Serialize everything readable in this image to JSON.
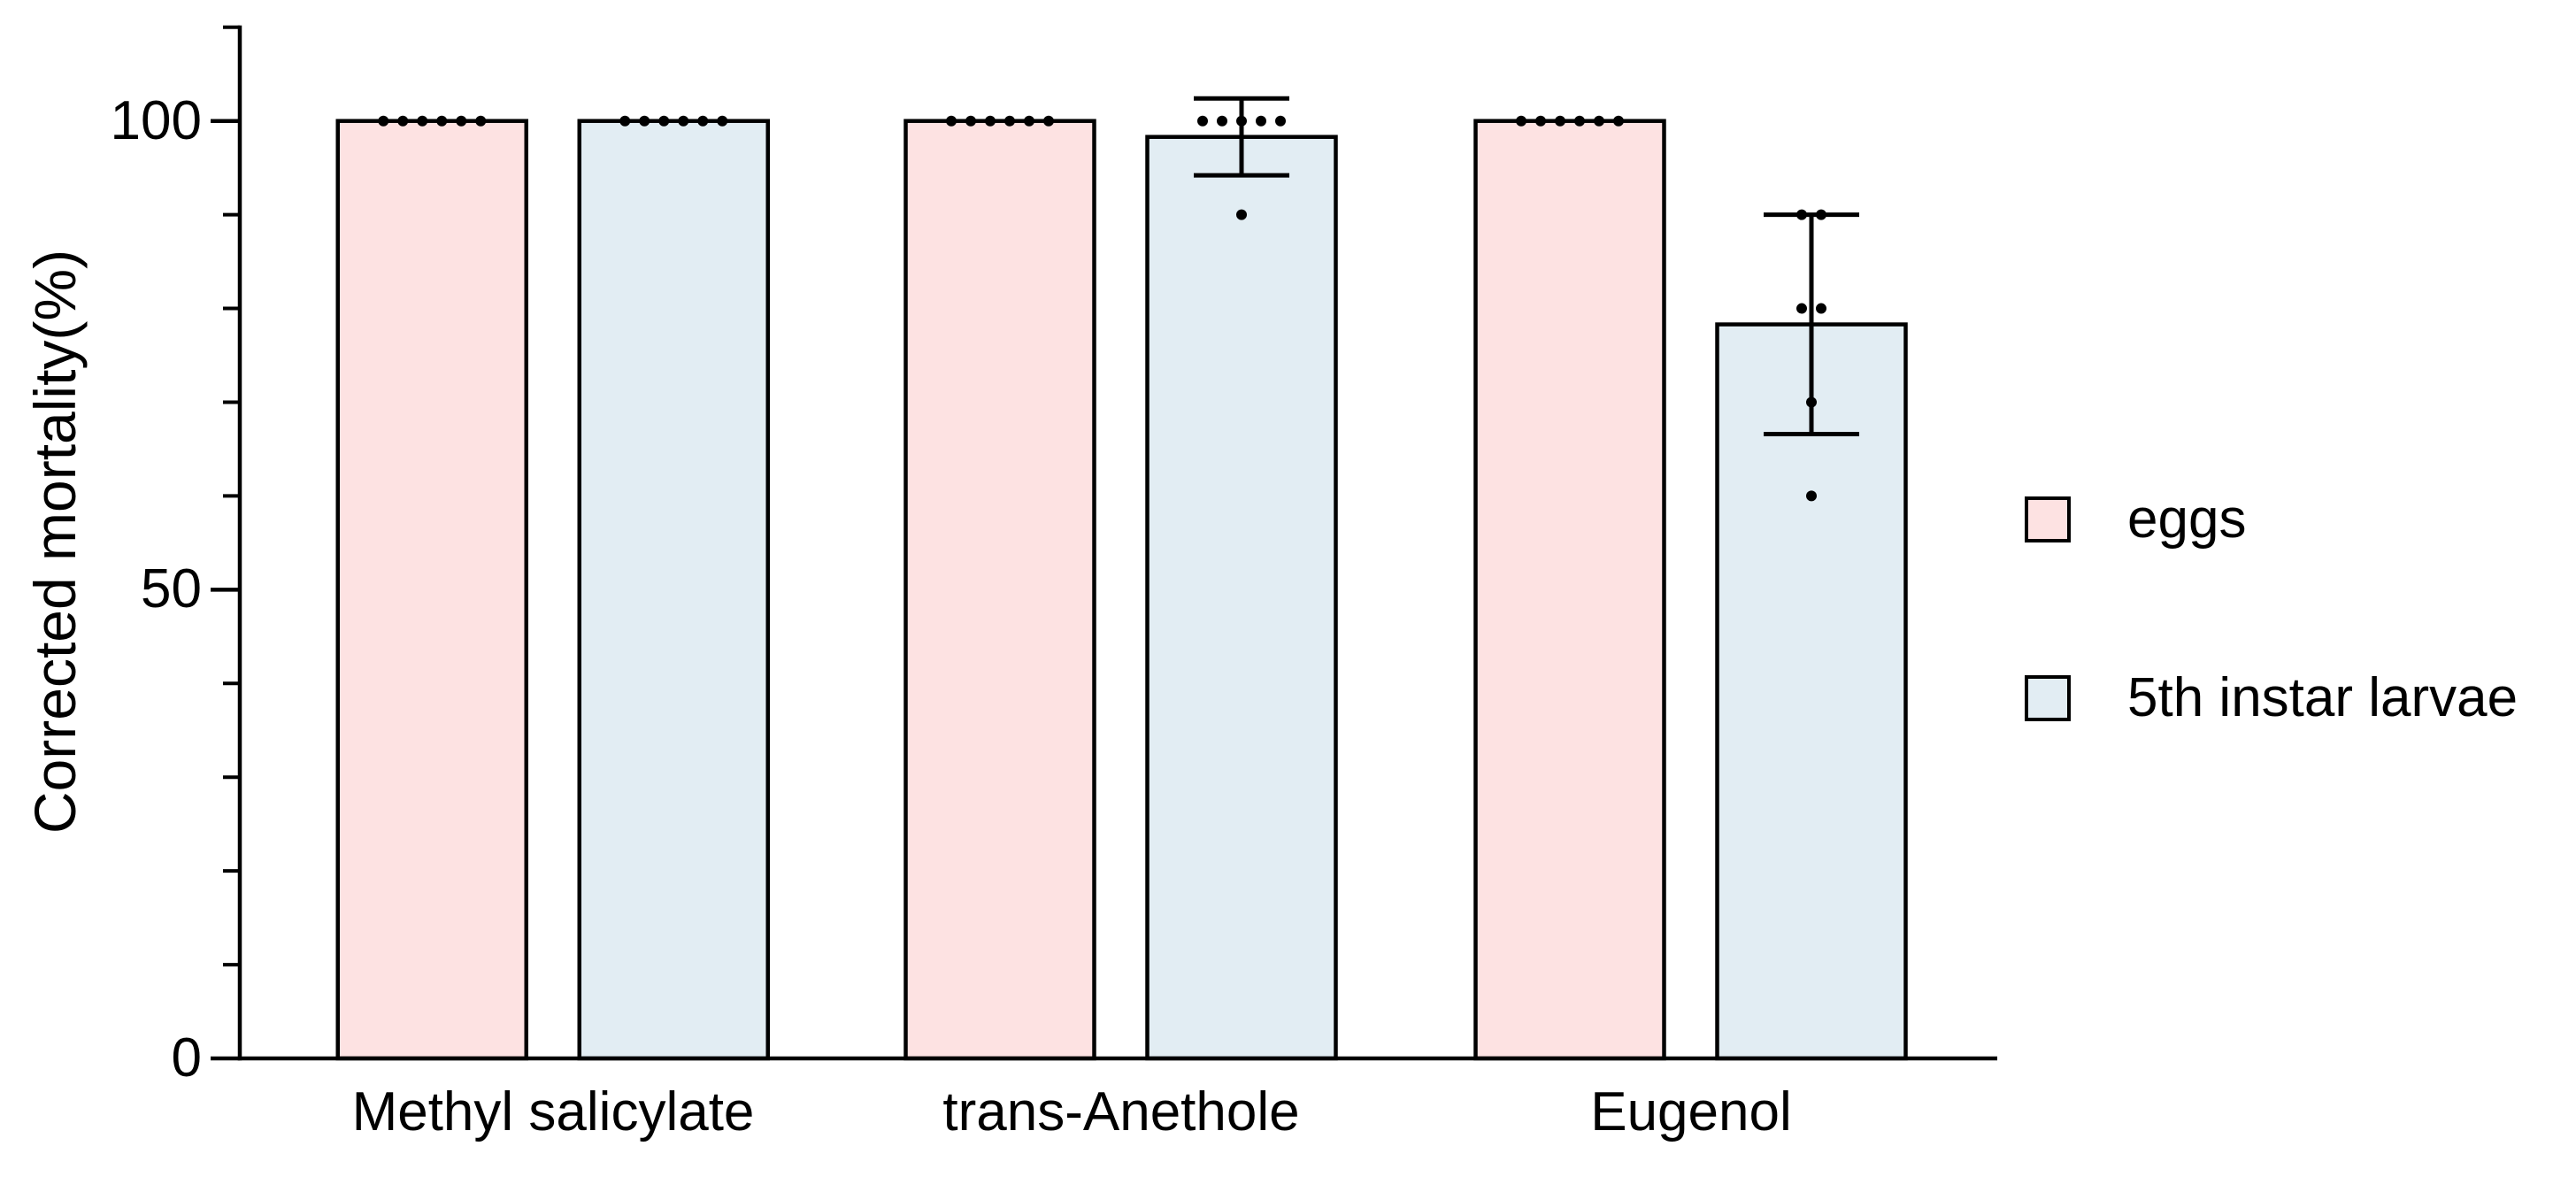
{
  "chart_data": {
    "type": "bar",
    "title": "",
    "ylabel": "Corrected mortality(%)",
    "xlabel": "",
    "categories": [
      "Methyl salicylate",
      "trans-Anethole",
      "Eugenol"
    ],
    "series": [
      {
        "name": "eggs",
        "color": "#FDE2E2",
        "values": [
          100,
          100,
          100
        ],
        "sd": [
          0,
          0,
          0
        ],
        "points": [
          [
            100,
            100,
            100,
            100,
            100,
            100
          ],
          [
            100,
            100,
            100,
            100,
            100,
            100
          ],
          [
            100,
            100,
            100,
            100,
            100,
            100
          ]
        ]
      },
      {
        "name": "5th instar larvae",
        "color": "#E2EDF3",
        "values": [
          100,
          98.3,
          78.3
        ],
        "sd": [
          0,
          4.1,
          11.7
        ],
        "points": [
          [
            100,
            100,
            100,
            100,
            100,
            100
          ],
          [
            100,
            100,
            100,
            100,
            100,
            90
          ],
          [
            90,
            90,
            80,
            80,
            70,
            60
          ]
        ]
      }
    ],
    "yaxis": {
      "min": 0,
      "max": 110,
      "major_ticks": [
        0,
        50,
        100
      ],
      "minor_tick_step": 10
    },
    "grid": false,
    "legend_position": "right",
    "bar_outline_color": "#000000",
    "point_color": "#000000",
    "error_bar_color": "#000000"
  }
}
